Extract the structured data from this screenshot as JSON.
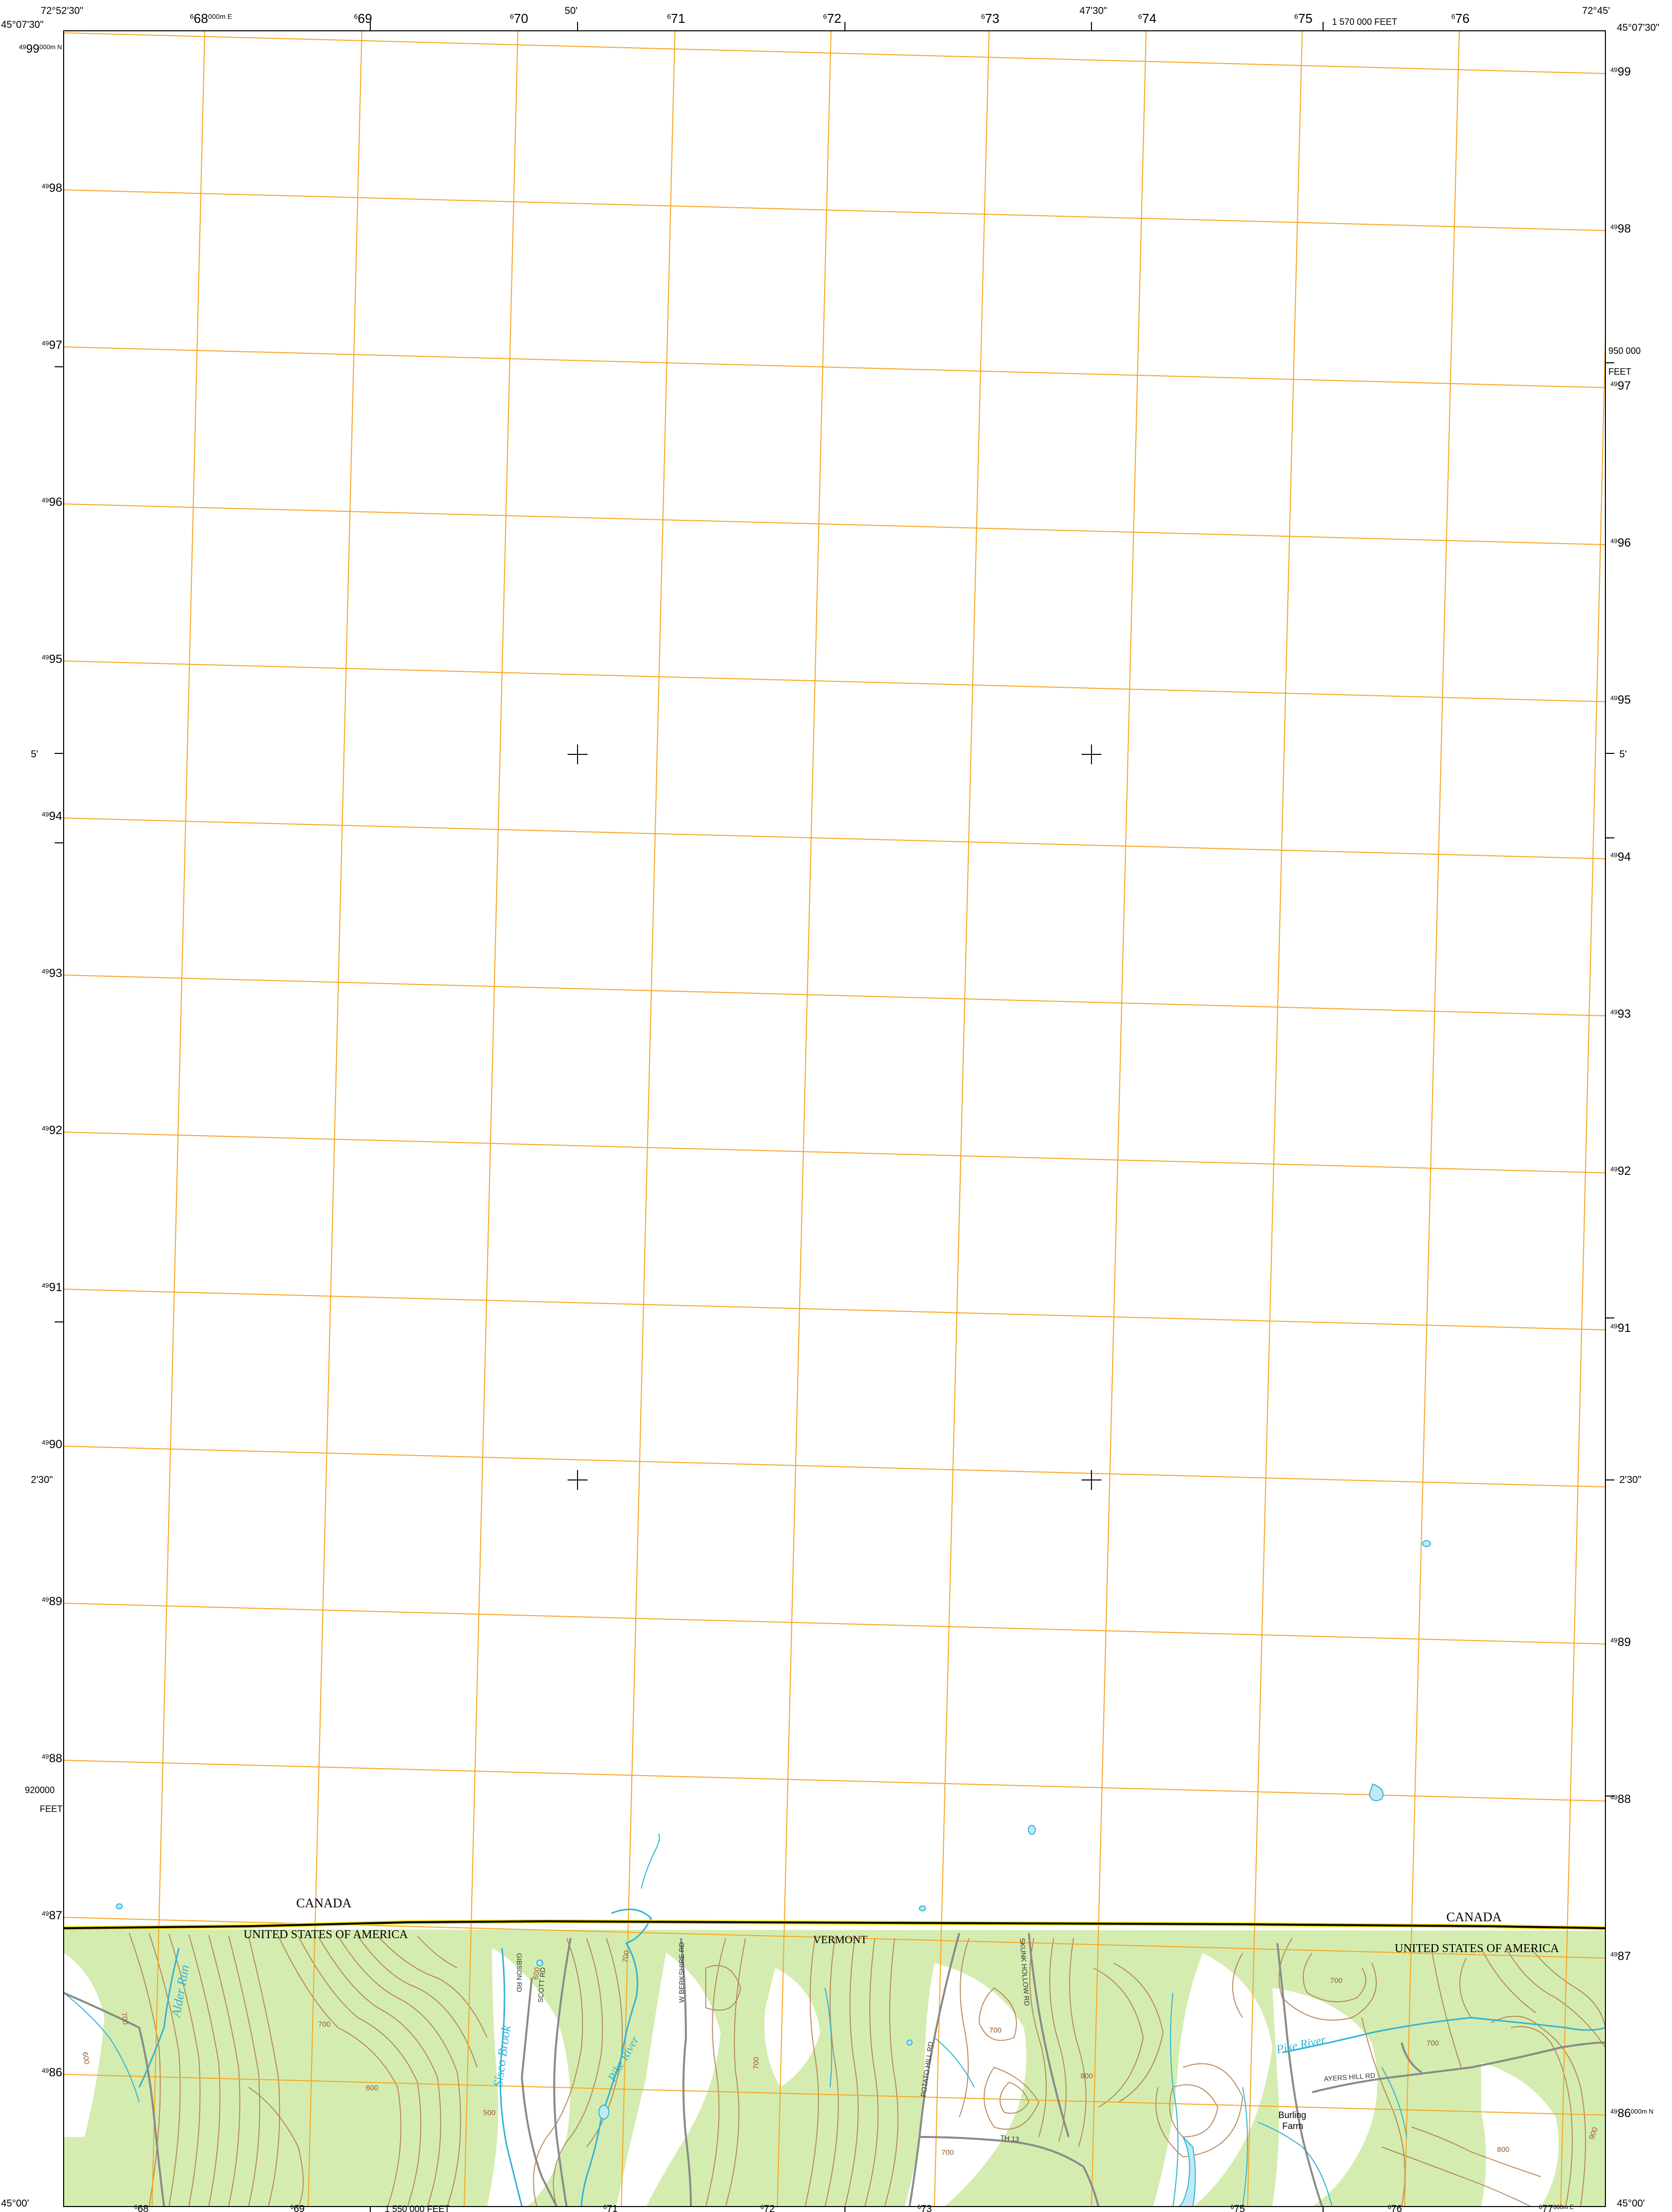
{
  "corners": {
    "top_left_lon": "72°52'30\"",
    "top_left_lat": "45°07'30\"",
    "top_right_lon": "72°45'",
    "top_right_lat": "45°07'30\"",
    "bottom_left_lat": "45°00'",
    "bottom_right_lat": "45°00'"
  },
  "graticule": {
    "top_minutes": [
      "50'",
      "47'30\""
    ],
    "side_minutes": [
      "5'",
      "2'30\""
    ]
  },
  "utm": {
    "easting_top": [
      {
        "sup": "6",
        "main": "68",
        "suffix": "000m E"
      },
      {
        "sup": "6",
        "main": "69",
        "suffix": ""
      },
      {
        "sup": "6",
        "main": "70",
        "suffix": ""
      },
      {
        "sup": "6",
        "main": "71",
        "suffix": ""
      },
      {
        "sup": "6",
        "main": "72",
        "suffix": ""
      },
      {
        "sup": "6",
        "main": "73",
        "suffix": ""
      },
      {
        "sup": "6",
        "main": "74",
        "suffix": ""
      },
      {
        "sup": "6",
        "main": "75",
        "suffix": ""
      },
      {
        "sup": "6",
        "main": "76",
        "suffix": ""
      }
    ],
    "easting_bottom": [
      {
        "sup": "6",
        "main": "68",
        "suffix": ""
      },
      {
        "sup": "6",
        "main": "69",
        "suffix": ""
      },
      {
        "sup": "6",
        "main": "71",
        "suffix": ""
      },
      {
        "sup": "6",
        "main": "72",
        "suffix": ""
      },
      {
        "sup": "6",
        "main": "73",
        "suffix": ""
      },
      {
        "sup": "6",
        "main": "75",
        "suffix": ""
      },
      {
        "sup": "6",
        "main": "76",
        "suffix": ""
      },
      {
        "sup": "6",
        "main": "77",
        "suffix": "000m E"
      }
    ],
    "northing_left": [
      {
        "sup": "49",
        "main": "99",
        "suffix": "000m N"
      },
      {
        "sup": "49",
        "main": "98",
        "suffix": ""
      },
      {
        "sup": "49",
        "main": "97",
        "suffix": ""
      },
      {
        "sup": "49",
        "main": "96",
        "suffix": ""
      },
      {
        "sup": "49",
        "main": "95",
        "suffix": ""
      },
      {
        "sup": "49",
        "main": "94",
        "suffix": ""
      },
      {
        "sup": "49",
        "main": "93",
        "suffix": ""
      },
      {
        "sup": "49",
        "main": "92",
        "suffix": ""
      },
      {
        "sup": "49",
        "main": "91",
        "suffix": ""
      },
      {
        "sup": "49",
        "main": "90",
        "suffix": ""
      },
      {
        "sup": "49",
        "main": "89",
        "suffix": ""
      },
      {
        "sup": "49",
        "main": "88",
        "suffix": ""
      },
      {
        "sup": "49",
        "main": "87",
        "suffix": ""
      },
      {
        "sup": "49",
        "main": "86",
        "suffix": ""
      }
    ],
    "northing_right": [
      {
        "sup": "49",
        "main": "99",
        "suffix": ""
      },
      {
        "sup": "49",
        "main": "98",
        "suffix": ""
      },
      {
        "sup": "49",
        "main": "97",
        "suffix": ""
      },
      {
        "sup": "49",
        "main": "96",
        "suffix": ""
      },
      {
        "sup": "49",
        "main": "95",
        "suffix": ""
      },
      {
        "sup": "49",
        "main": "94",
        "suffix": ""
      },
      {
        "sup": "49",
        "main": "93",
        "suffix": ""
      },
      {
        "sup": "49",
        "main": "92",
        "suffix": ""
      },
      {
        "sup": "49",
        "main": "91",
        "suffix": ""
      },
      {
        "sup": "49",
        "main": "89",
        "suffix": ""
      },
      {
        "sup": "49",
        "main": "88",
        "suffix": ""
      },
      {
        "sup": "49",
        "main": "87",
        "suffix": ""
      },
      {
        "sup": "49",
        "main": "86",
        "suffix": "000m N"
      }
    ]
  },
  "state_plane": {
    "top_feet": "1 570 000 FEET",
    "bottom_feet": "1 550 000 FEET",
    "right_feet": "950 000",
    "right_feet_unit": "FEET",
    "left_feet": "920000",
    "left_feet_unit": "FEET"
  },
  "places": {
    "canada_left": "CANADA",
    "usa_left": "UNITED STATES OF AMERICA",
    "vermont": "VERMONT",
    "canada_right": "CANADA",
    "usa_right": "UNITED STATES OF AMERICA",
    "burling_1": "Burling",
    "burling_2": "Farm"
  },
  "water": {
    "alder_run": "Alder Run",
    "sisco_brook": "Sisco Brook",
    "pike_river_1": "Pike River",
    "pike_river_2": "Pike River"
  },
  "roads": {
    "ayers_hill": "AYERS HILL RD",
    "scott": "SCOTT RD",
    "gibson": "GIBSON RD",
    "w_berkshire": "W BERKSHIRE RD",
    "potato_hill": "POTATO HILL RD",
    "skunk_hollow": "SKUNK HOLLOW RD",
    "th13": "TH 13"
  },
  "contours": [
    "700",
    "600",
    "700",
    "600",
    "500",
    "600",
    "700",
    "700",
    "700",
    "800",
    "700",
    "700",
    "700",
    "800",
    "900"
  ],
  "colors": {
    "utm_grid": "#f6a623",
    "vegetation": "#d5ecb0",
    "water": "#2fb3d6",
    "contour": "#b07a4a",
    "boundary": "#000000",
    "road": "#8a8a8a"
  }
}
